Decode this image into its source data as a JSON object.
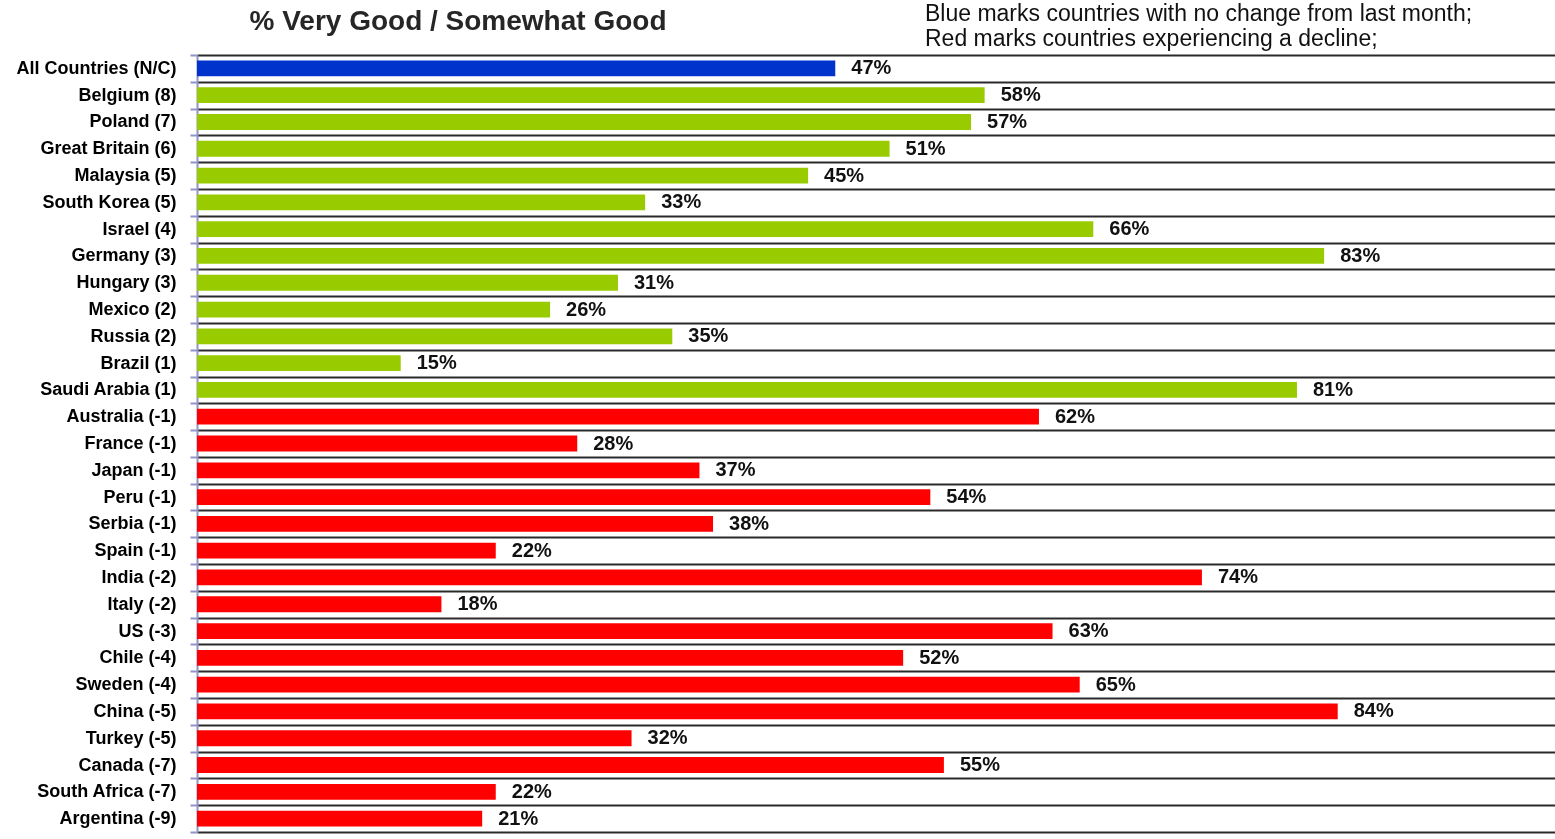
{
  "chart_data": {
    "type": "bar",
    "orientation": "horizontal",
    "title": "% Very Good / Somewhat Good",
    "annotations": [
      "Blue marks countries with no change from last month;",
      "Red marks countries experiencing a decline;"
    ],
    "categories": [
      "All Countries (N/C)",
      "Belgium (8)",
      "Poland (7)",
      "Great Britain (6)",
      "Malaysia (5)",
      "South Korea (5)",
      "Israel (4)",
      "Germany (3)",
      "Hungary (3)",
      "Mexico (2)",
      "Russia (2)",
      "Brazil (1)",
      "Saudi Arabia (1)",
      "Australia (-1)",
      "France (-1)",
      "Japan (-1)",
      "Peru (-1)",
      "Serbia (-1)",
      "Spain (-1)",
      "India (-2)",
      "Italy (-2)",
      "US (-3)",
      "Chile (-4)",
      "Sweden (-4)",
      "China (-5)",
      "Turkey (-5)",
      "Canada (-7)",
      "South Africa (-7)",
      "Argentina (-9)"
    ],
    "values": [
      47,
      58,
      57,
      51,
      45,
      33,
      66,
      83,
      31,
      26,
      35,
      15,
      81,
      62,
      28,
      37,
      54,
      38,
      22,
      74,
      18,
      63,
      52,
      65,
      84,
      32,
      55,
      22,
      21
    ],
    "value_labels": [
      "47%",
      "58%",
      "57%",
      "51%",
      "45%",
      "33%",
      "66%",
      "83%",
      "31%",
      "26%",
      "35%",
      "15%",
      "81%",
      "62%",
      "28%",
      "37%",
      "54%",
      "38%",
      "22%",
      "74%",
      "18%",
      "63%",
      "52%",
      "65%",
      "84%",
      "32%",
      "55%",
      "22%",
      "21%"
    ],
    "colors": [
      "#0033cc",
      "#99cc00",
      "#99cc00",
      "#99cc00",
      "#99cc00",
      "#99cc00",
      "#99cc00",
      "#99cc00",
      "#99cc00",
      "#99cc00",
      "#99cc00",
      "#99cc00",
      "#99cc00",
      "#ff0000",
      "#ff0000",
      "#ff0000",
      "#ff0000",
      "#ff0000",
      "#ff0000",
      "#ff0000",
      "#ff0000",
      "#ff0000",
      "#ff0000",
      "#ff0000",
      "#ff0000",
      "#ff0000",
      "#ff0000",
      "#ff0000",
      "#ff0000"
    ],
    "xlim": [
      0,
      100
    ],
    "grid": "y",
    "tick_labels": "y"
  }
}
